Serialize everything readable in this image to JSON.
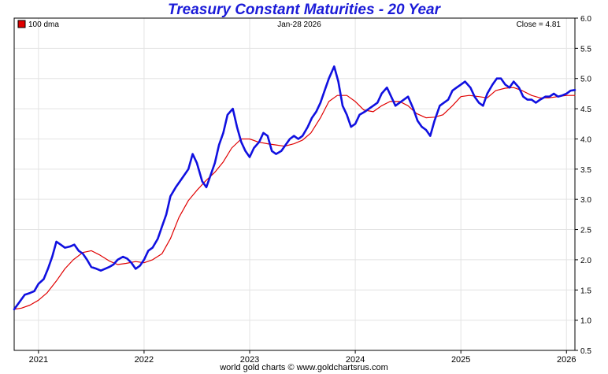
{
  "chart_data": {
    "type": "line",
    "title": "Treasury Constant Maturities - 20 Year",
    "date_label": "Jan-28  2026",
    "close_label": "Close = 4.81",
    "legend": [
      {
        "label": "100 dma",
        "color": "#e00000"
      }
    ],
    "footer": "world gold charts © www.goldchartsrus.com",
    "ylim": [
      0.5,
      6.0
    ],
    "yticks": [
      "0.5",
      "1.0",
      "1.5",
      "2.0",
      "2.5",
      "3.0",
      "3.5",
      "4.0",
      "4.5",
      "5.0",
      "5.5",
      "6.0"
    ],
    "xlim": [
      2020.77,
      2026.08
    ],
    "xticks": [
      "2021",
      "2022",
      "2023",
      "2024",
      "2025",
      "2026"
    ],
    "grid": true,
    "series": [
      {
        "name": "20 Year",
        "color": "#1010e0",
        "points": [
          [
            2020.77,
            1.18
          ],
          [
            2020.82,
            1.3
          ],
          [
            2020.87,
            1.42
          ],
          [
            2020.92,
            1.45
          ],
          [
            2020.96,
            1.48
          ],
          [
            2021.0,
            1.6
          ],
          [
            2021.05,
            1.68
          ],
          [
            2021.09,
            1.85
          ],
          [
            2021.13,
            2.05
          ],
          [
            2021.17,
            2.3
          ],
          [
            2021.21,
            2.25
          ],
          [
            2021.25,
            2.2
          ],
          [
            2021.3,
            2.22
          ],
          [
            2021.34,
            2.25
          ],
          [
            2021.38,
            2.15
          ],
          [
            2021.42,
            2.1
          ],
          [
            2021.46,
            2.0
          ],
          [
            2021.5,
            1.88
          ],
          [
            2021.55,
            1.85
          ],
          [
            2021.59,
            1.82
          ],
          [
            2021.63,
            1.85
          ],
          [
            2021.67,
            1.88
          ],
          [
            2021.71,
            1.92
          ],
          [
            2021.75,
            2.0
          ],
          [
            2021.8,
            2.05
          ],
          [
            2021.84,
            2.02
          ],
          [
            2021.88,
            1.95
          ],
          [
            2021.92,
            1.85
          ],
          [
            2021.96,
            1.9
          ],
          [
            2022.0,
            2.0
          ],
          [
            2022.04,
            2.15
          ],
          [
            2022.08,
            2.2
          ],
          [
            2022.13,
            2.35
          ],
          [
            2022.17,
            2.55
          ],
          [
            2022.21,
            2.75
          ],
          [
            2022.25,
            3.05
          ],
          [
            2022.3,
            3.2
          ],
          [
            2022.34,
            3.3
          ],
          [
            2022.38,
            3.4
          ],
          [
            2022.42,
            3.5
          ],
          [
            2022.46,
            3.75
          ],
          [
            2022.5,
            3.6
          ],
          [
            2022.55,
            3.3
          ],
          [
            2022.59,
            3.2
          ],
          [
            2022.63,
            3.4
          ],
          [
            2022.67,
            3.6
          ],
          [
            2022.71,
            3.9
          ],
          [
            2022.75,
            4.1
          ],
          [
            2022.79,
            4.4
          ],
          [
            2022.84,
            4.5
          ],
          [
            2022.88,
            4.2
          ],
          [
            2022.92,
            3.95
          ],
          [
            2022.96,
            3.8
          ],
          [
            2023.0,
            3.7
          ],
          [
            2023.04,
            3.85
          ],
          [
            2023.09,
            3.95
          ],
          [
            2023.13,
            4.1
          ],
          [
            2023.17,
            4.05
          ],
          [
            2023.21,
            3.8
          ],
          [
            2023.25,
            3.75
          ],
          [
            2023.3,
            3.8
          ],
          [
            2023.34,
            3.9
          ],
          [
            2023.38,
            4.0
          ],
          [
            2023.42,
            4.05
          ],
          [
            2023.46,
            4.0
          ],
          [
            2023.5,
            4.05
          ],
          [
            2023.55,
            4.2
          ],
          [
            2023.59,
            4.35
          ],
          [
            2023.63,
            4.45
          ],
          [
            2023.67,
            4.6
          ],
          [
            2023.71,
            4.8
          ],
          [
            2023.75,
            5.0
          ],
          [
            2023.8,
            5.2
          ],
          [
            2023.84,
            4.95
          ],
          [
            2023.88,
            4.55
          ],
          [
            2023.92,
            4.4
          ],
          [
            2023.96,
            4.2
          ],
          [
            2024.0,
            4.25
          ],
          [
            2024.04,
            4.4
          ],
          [
            2024.09,
            4.45
          ],
          [
            2024.13,
            4.5
          ],
          [
            2024.17,
            4.55
          ],
          [
            2024.21,
            4.6
          ],
          [
            2024.25,
            4.75
          ],
          [
            2024.3,
            4.85
          ],
          [
            2024.34,
            4.7
          ],
          [
            2024.38,
            4.55
          ],
          [
            2024.42,
            4.6
          ],
          [
            2024.46,
            4.65
          ],
          [
            2024.5,
            4.7
          ],
          [
            2024.55,
            4.5
          ],
          [
            2024.59,
            4.3
          ],
          [
            2024.63,
            4.2
          ],
          [
            2024.67,
            4.15
          ],
          [
            2024.71,
            4.05
          ],
          [
            2024.75,
            4.3
          ],
          [
            2024.8,
            4.55
          ],
          [
            2024.84,
            4.6
          ],
          [
            2024.88,
            4.65
          ],
          [
            2024.92,
            4.8
          ],
          [
            2024.96,
            4.85
          ],
          [
            2025.0,
            4.9
          ],
          [
            2025.04,
            4.95
          ],
          [
            2025.09,
            4.85
          ],
          [
            2025.13,
            4.7
          ],
          [
            2025.17,
            4.6
          ],
          [
            2025.21,
            4.55
          ],
          [
            2025.25,
            4.75
          ],
          [
            2025.3,
            4.9
          ],
          [
            2025.34,
            5.0
          ],
          [
            2025.38,
            5.0
          ],
          [
            2025.42,
            4.9
          ],
          [
            2025.46,
            4.85
          ],
          [
            2025.5,
            4.95
          ],
          [
            2025.55,
            4.85
          ],
          [
            2025.59,
            4.7
          ],
          [
            2025.63,
            4.65
          ],
          [
            2025.67,
            4.65
          ],
          [
            2025.71,
            4.6
          ],
          [
            2025.75,
            4.65
          ],
          [
            2025.8,
            4.7
          ],
          [
            2025.84,
            4.7
          ],
          [
            2025.88,
            4.75
          ],
          [
            2025.92,
            4.7
          ],
          [
            2025.96,
            4.72
          ],
          [
            2026.0,
            4.75
          ],
          [
            2026.04,
            4.8
          ],
          [
            2026.08,
            4.81
          ]
        ]
      },
      {
        "name": "100 dma",
        "color": "#e00000",
        "points": [
          [
            2020.77,
            1.18
          ],
          [
            2020.84,
            1.2
          ],
          [
            2020.92,
            1.25
          ],
          [
            2021.0,
            1.33
          ],
          [
            2021.08,
            1.45
          ],
          [
            2021.17,
            1.65
          ],
          [
            2021.25,
            1.85
          ],
          [
            2021.33,
            2.0
          ],
          [
            2021.42,
            2.12
          ],
          [
            2021.5,
            2.15
          ],
          [
            2021.58,
            2.08
          ],
          [
            2021.67,
            1.98
          ],
          [
            2021.75,
            1.92
          ],
          [
            2021.83,
            1.94
          ],
          [
            2021.92,
            1.97
          ],
          [
            2022.0,
            1.95
          ],
          [
            2022.08,
            2.0
          ],
          [
            2022.17,
            2.1
          ],
          [
            2022.25,
            2.35
          ],
          [
            2022.33,
            2.7
          ],
          [
            2022.42,
            2.98
          ],
          [
            2022.5,
            3.15
          ],
          [
            2022.58,
            3.3
          ],
          [
            2022.67,
            3.45
          ],
          [
            2022.75,
            3.62
          ],
          [
            2022.83,
            3.85
          ],
          [
            2022.92,
            4.0
          ],
          [
            2023.0,
            4.0
          ],
          [
            2023.08,
            3.95
          ],
          [
            2023.17,
            3.92
          ],
          [
            2023.25,
            3.9
          ],
          [
            2023.33,
            3.88
          ],
          [
            2023.42,
            3.92
          ],
          [
            2023.5,
            3.98
          ],
          [
            2023.58,
            4.1
          ],
          [
            2023.67,
            4.35
          ],
          [
            2023.75,
            4.62
          ],
          [
            2023.83,
            4.72
          ],
          [
            2023.92,
            4.72
          ],
          [
            2024.0,
            4.62
          ],
          [
            2024.08,
            4.48
          ],
          [
            2024.17,
            4.45
          ],
          [
            2024.25,
            4.55
          ],
          [
            2024.33,
            4.62
          ],
          [
            2024.42,
            4.62
          ],
          [
            2024.5,
            4.55
          ],
          [
            2024.58,
            4.42
          ],
          [
            2024.67,
            4.35
          ],
          [
            2024.75,
            4.36
          ],
          [
            2024.83,
            4.4
          ],
          [
            2024.92,
            4.55
          ],
          [
            2025.0,
            4.7
          ],
          [
            2025.08,
            4.72
          ],
          [
            2025.17,
            4.7
          ],
          [
            2025.25,
            4.68
          ],
          [
            2025.33,
            4.8
          ],
          [
            2025.42,
            4.84
          ],
          [
            2025.5,
            4.85
          ],
          [
            2025.58,
            4.8
          ],
          [
            2025.67,
            4.72
          ],
          [
            2025.75,
            4.68
          ],
          [
            2025.83,
            4.68
          ],
          [
            2025.92,
            4.7
          ],
          [
            2026.0,
            4.72
          ],
          [
            2026.08,
            4.72
          ]
        ]
      }
    ]
  }
}
